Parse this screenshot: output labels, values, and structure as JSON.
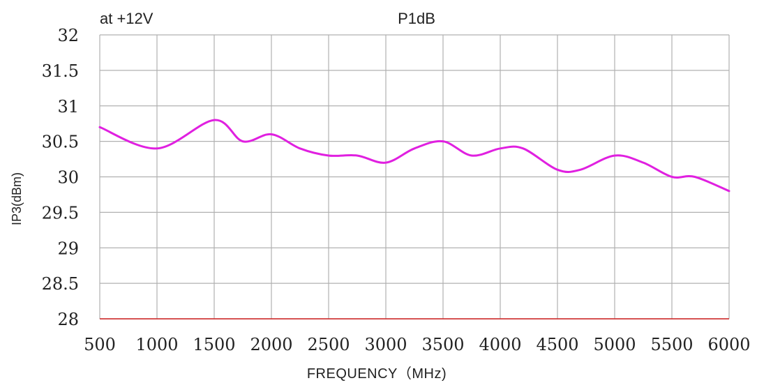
{
  "chart_data": {
    "type": "line",
    "title_left": "at +12V",
    "title": "P1dB",
    "xlabel": "FREQUENCY（MHz)",
    "ylabel": "IP3(dBm)",
    "xlim": [
      500,
      6000
    ],
    "ylim": [
      28,
      32
    ],
    "x_ticks": [
      "500",
      "1000",
      "1500",
      "2000",
      "2500",
      "3000",
      "3500",
      "4000",
      "4500",
      "5000",
      "5500",
      "6000"
    ],
    "y_ticks": [
      "28",
      "28.5",
      "29",
      "29.5",
      "30",
      "30.5",
      "31",
      "31.5",
      "32"
    ],
    "grid": true,
    "series": [
      {
        "color": "#e020e0",
        "x": [
          500,
          1000,
          1500,
          1750,
          2000,
          2250,
          2500,
          2750,
          3000,
          3250,
          3500,
          3750,
          4000,
          4200,
          4500,
          4700,
          5000,
          5250,
          5500,
          5700,
          6000
        ],
        "y": [
          30.7,
          30.4,
          30.8,
          30.5,
          30.6,
          30.4,
          30.3,
          30.3,
          30.2,
          30.4,
          30.5,
          30.3,
          30.4,
          30.4,
          30.1,
          30.1,
          30.3,
          30.2,
          30.0,
          30.0,
          29.8
        ]
      }
    ],
    "colors": {
      "grid": "#b0b0b0",
      "baseline": "#d02020",
      "text": "#222222"
    }
  }
}
